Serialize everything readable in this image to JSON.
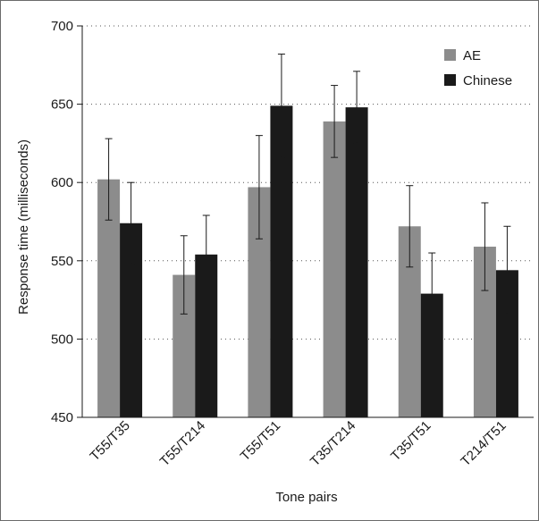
{
  "chart_data": {
    "type": "bar",
    "title": "",
    "xlabel": "Tone pairs",
    "ylabel": "Response time (milliseconds)",
    "ylim": [
      450,
      700
    ],
    "yticks": [
      450,
      500,
      550,
      600,
      650,
      700
    ],
    "grid": "horizontal dotted",
    "legend_position": "top-right",
    "categories": [
      "T55/T35",
      "T55/T214",
      "T55/T51",
      "T35/T214",
      "T35/T51",
      "T214/T51"
    ],
    "series": [
      {
        "name": "AE",
        "color": "#8c8c8c",
        "values": [
          602,
          541,
          597,
          639,
          572,
          559
        ],
        "error": [
          26,
          25,
          33,
          23,
          26,
          28
        ]
      },
      {
        "name": "Chinese",
        "color": "#1a1a1a",
        "values": [
          574,
          554,
          649,
          648,
          529,
          544
        ],
        "error": [
          26,
          25,
          33,
          23,
          26,
          28
        ]
      }
    ]
  }
}
